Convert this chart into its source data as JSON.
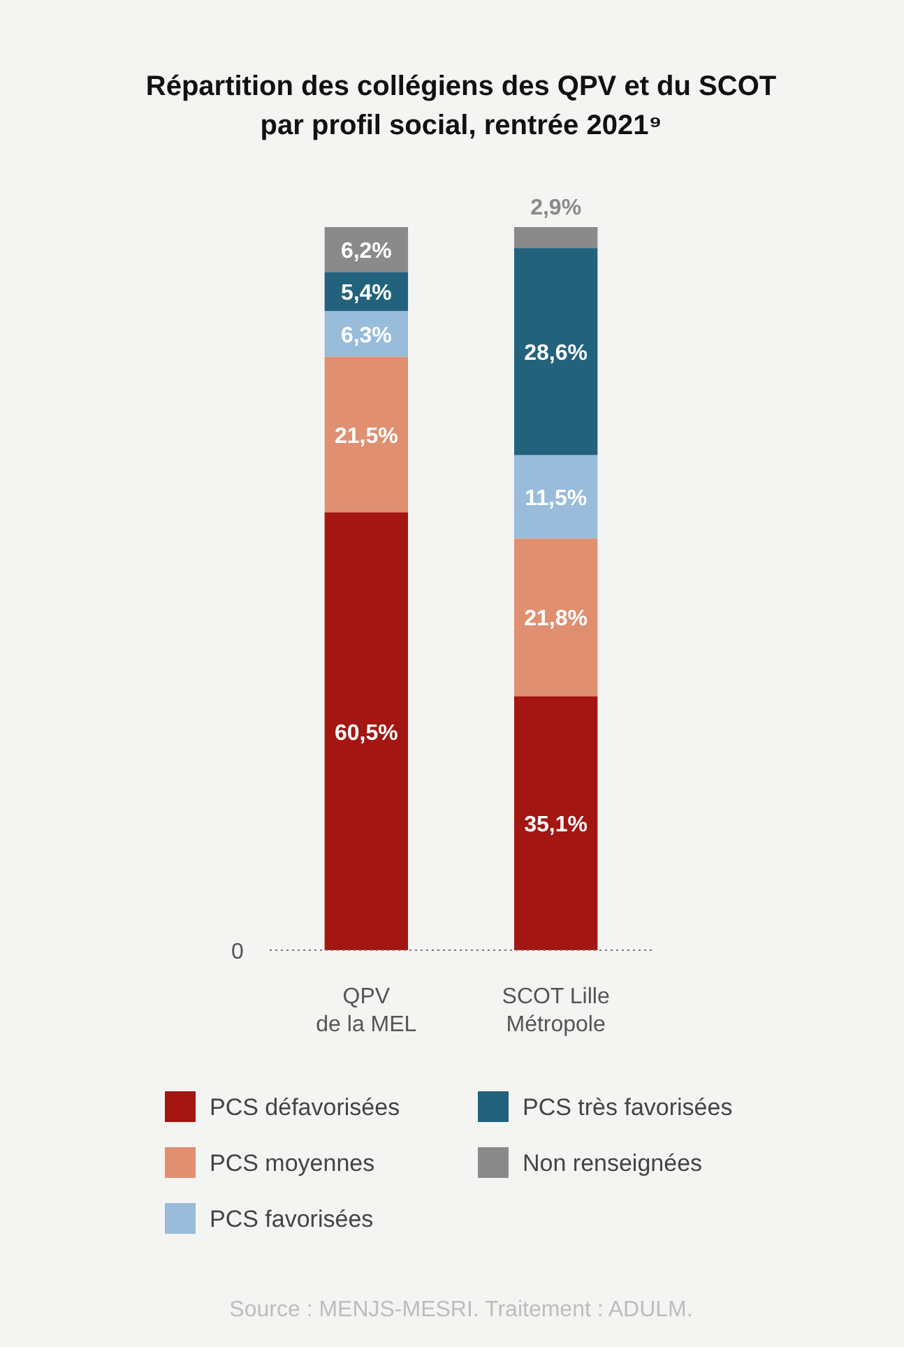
{
  "chart_data": {
    "type": "bar",
    "stacked": true,
    "title": "Répartition des collégiens des QPV et du SCOT\npar profil social, rentrée 2021⁹",
    "categories": [
      "QPV\nde la MEL",
      "SCOT Lille\nMétropole"
    ],
    "series": [
      {
        "name": "PCS défavorisées",
        "color": "#a31612",
        "values": [
          60.5,
          35.1
        ],
        "value_labels": [
          "60,5%",
          "35,1%"
        ]
      },
      {
        "name": "PCS moyennes",
        "color": "#e08f71",
        "values": [
          21.5,
          21.8
        ],
        "value_labels": [
          "21,5%",
          "21,8%"
        ]
      },
      {
        "name": "PCS favorisées",
        "color": "#98bcda",
        "values": [
          6.3,
          11.5
        ],
        "value_labels": [
          "6,3%",
          "11,5%"
        ]
      },
      {
        "name": "PCS très favorisées",
        "color": "#23627c",
        "values": [
          5.4,
          28.6
        ],
        "value_labels": [
          "5,4%",
          "28,6%"
        ]
      },
      {
        "name": "Non renseignées",
        "color": "#8a8a8a",
        "values": [
          6.2,
          2.9
        ],
        "value_labels": [
          "6,2%",
          "2,9%"
        ]
      }
    ],
    "ylim": [
      0,
      100
    ],
    "legend": "bottom",
    "annotations": [
      "0",
      "Source : MENJS-MESRI. Traitement : ADULM."
    ]
  }
}
